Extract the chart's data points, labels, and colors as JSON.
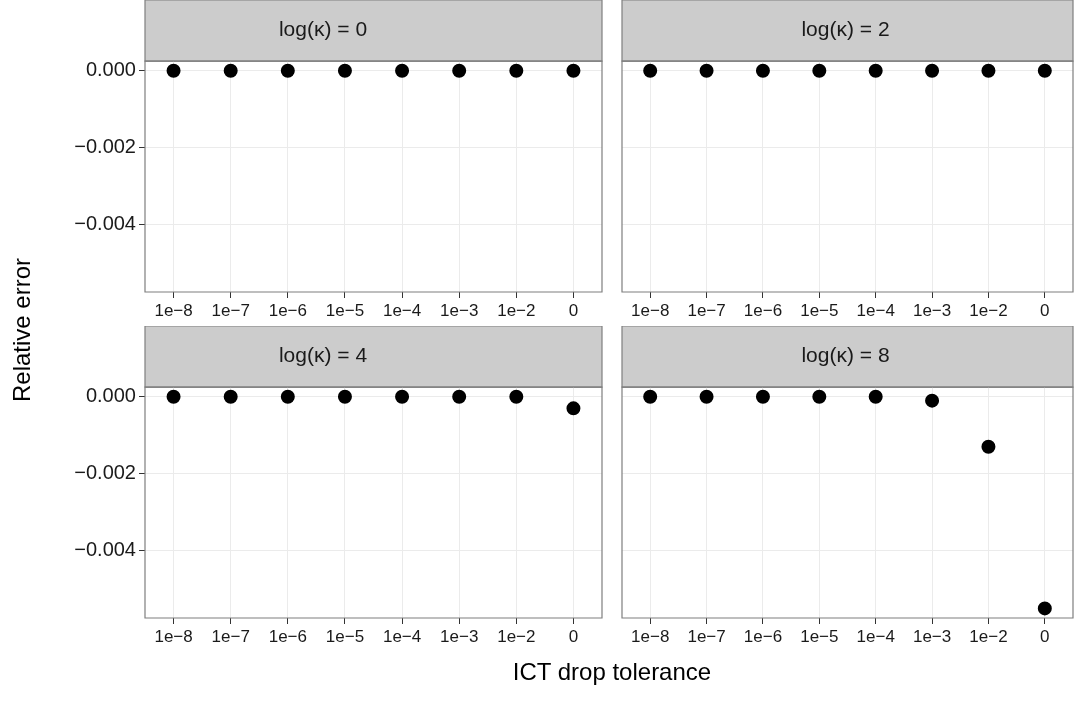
{
  "chart_data": [
    {
      "type": "scatter",
      "title": "log(κ) = 0",
      "ylabel": "Relative error",
      "categories": [
        "1e−8",
        "1e−7",
        "1e−6",
        "1e−5",
        "1e−4",
        "1e−3",
        "1e−2",
        "0"
      ],
      "values": [
        0,
        0,
        0,
        0,
        0,
        0,
        0,
        0
      ],
      "color": "#000000",
      "ylim": [
        -0.00575,
        0.00025
      ],
      "yticks": [
        {
          "value": -0.004,
          "label": "−0.004"
        },
        {
          "value": -0.002,
          "label": "−0.002"
        },
        {
          "value": 0,
          "label": "0.000"
        }
      ],
      "grid": true,
      "marker": "circle"
    },
    {
      "type": "scatter",
      "title": "log(κ) = 2",
      "categories": [
        "1e−8",
        "1e−7",
        "1e−6",
        "1e−5",
        "1e−4",
        "1e−3",
        "1e−2",
        "0"
      ],
      "values": [
        0,
        0,
        0,
        0,
        0,
        0,
        0,
        0
      ],
      "color": "#000000",
      "ylim": [
        -0.00575,
        0.00025
      ],
      "yticks": [
        {
          "value": -0.004,
          "label": null
        },
        {
          "value": -0.002,
          "label": null
        },
        {
          "value": 0,
          "label": null
        }
      ],
      "grid": true,
      "marker": "circle",
      "tick_labels": "x"
    },
    {
      "type": "scatter",
      "title": "log(κ) = 4",
      "xlabel": "ICT drop tolerance",
      "categories": [
        "1e−8",
        "1e−7",
        "1e−6",
        "1e−5",
        "1e−4",
        "1e−3",
        "1e−2",
        "0"
      ],
      "values": [
        0,
        0,
        0,
        0,
        0,
        0,
        0,
        -0.0003
      ],
      "color": "#000000",
      "ylim": [
        -0.00575,
        0.00025
      ],
      "yticks": [
        {
          "value": -0.004,
          "label": "−0.004"
        },
        {
          "value": -0.002,
          "label": "−0.002"
        },
        {
          "value": 0,
          "label": "0.000"
        }
      ],
      "grid": true,
      "marker": "circle"
    },
    {
      "type": "scatter",
      "title": "log(κ) = 8",
      "categories": [
        "1e−8",
        "1e−7",
        "1e−6",
        "1e−5",
        "1e−4",
        "1e−3",
        "1e−2",
        "0"
      ],
      "values": [
        0,
        0,
        0,
        0,
        0,
        -0.0001,
        -0.0013,
        -0.0055
      ],
      "color": "#000000",
      "ylim": [
        -0.00575,
        0.00025
      ],
      "yticks": [
        {
          "value": -0.004,
          "label": null
        },
        {
          "value": -0.002,
          "label": null
        },
        {
          "value": 0,
          "label": null
        }
      ],
      "grid": true,
      "marker": "circle",
      "tick_labels": "x"
    }
  ]
}
